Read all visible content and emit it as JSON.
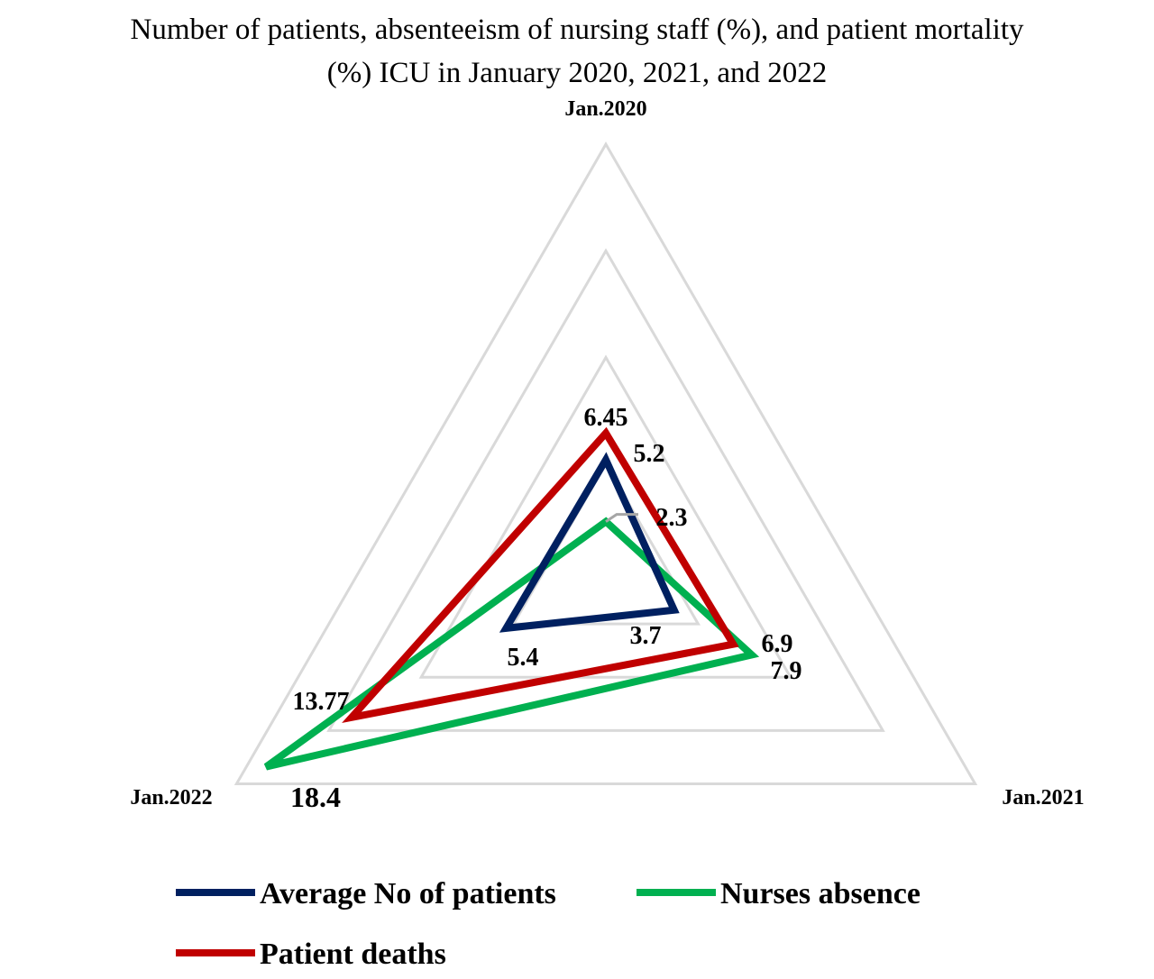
{
  "chart_data": {
    "type": "radar",
    "title_lines": [
      "Number of patients, absenteeism of nursing staff (%), and patient mortality",
      "(%) ICU in January 2020, 2021, and 2022"
    ],
    "categories": [
      "Jan.2020",
      "Jan.2021",
      "Jan.2022"
    ],
    "rlim": [
      0,
      20
    ],
    "ring_values": [
      5,
      10,
      15,
      20
    ],
    "grid": true,
    "legend_position": "bottom",
    "series": [
      {
        "name": "Average No of patients",
        "color": "#002060",
        "values": [
          5.2,
          3.7,
          5.4
        ],
        "labels": [
          "5.2",
          "3.7",
          "5.4"
        ]
      },
      {
        "name": "Nurses absence",
        "color": "#00B050",
        "values": [
          2.3,
          7.9,
          18.4
        ],
        "labels": [
          "2.3",
          "7.9",
          "18.4"
        ]
      },
      {
        "name": "Patient deaths",
        "color": "#C00000",
        "values": [
          6.45,
          6.9,
          13.77
        ],
        "labels": [
          "6.45",
          "6.9",
          "13.77"
        ]
      }
    ],
    "grid_color": "#D9D9D9"
  }
}
